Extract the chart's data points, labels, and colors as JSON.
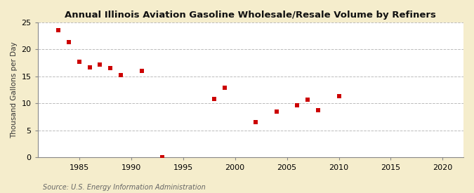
{
  "title": "Annual Illinois Aviation Gasoline Wholesale/Resale Volume by Refiners",
  "ylabel": "Thousand Gallons per Day",
  "source": "Source: U.S. Energy Information Administration",
  "fig_background_color": "#f5edcc",
  "plot_background_color": "#ffffff",
  "marker_color": "#cc0000",
  "marker": "s",
  "marker_size": 4,
  "xlim": [
    1981,
    2022
  ],
  "ylim": [
    0,
    25
  ],
  "xticks": [
    1985,
    1990,
    1995,
    2000,
    2005,
    2010,
    2015,
    2020
  ],
  "yticks": [
    0,
    5,
    10,
    15,
    20,
    25
  ],
  "data": [
    [
      1983,
      23.5
    ],
    [
      1984,
      21.3
    ],
    [
      1985,
      17.7
    ],
    [
      1986,
      16.7
    ],
    [
      1987,
      17.2
    ],
    [
      1988,
      16.6
    ],
    [
      1989,
      15.2
    ],
    [
      1991,
      16.0
    ],
    [
      1993,
      0.1
    ],
    [
      1998,
      10.9
    ],
    [
      1999,
      12.9
    ],
    [
      2002,
      6.5
    ],
    [
      2004,
      8.5
    ],
    [
      2006,
      9.7
    ],
    [
      2007,
      10.7
    ],
    [
      2008,
      8.7
    ],
    [
      2010,
      11.3
    ]
  ]
}
